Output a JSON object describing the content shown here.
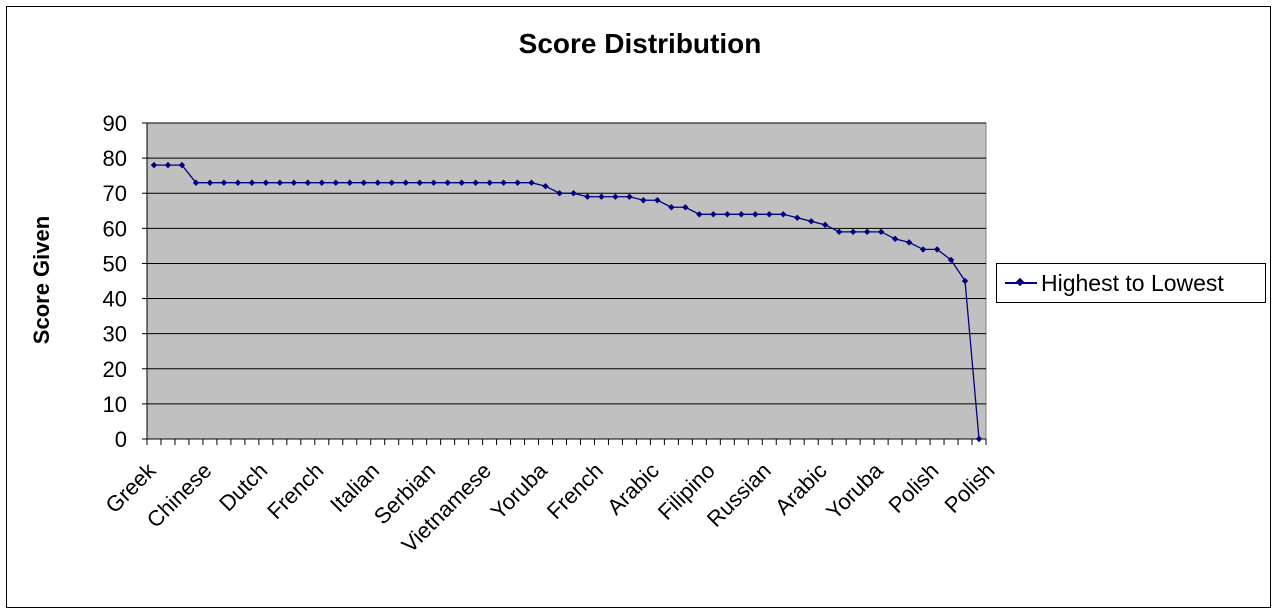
{
  "chart_data": {
    "type": "line",
    "title": "Score Distribution",
    "xlabel": "",
    "ylabel": "Score Given",
    "ylim": [
      0,
      90
    ],
    "yticks": [
      0,
      10,
      20,
      30,
      40,
      50,
      60,
      70,
      80,
      90
    ],
    "grid": true,
    "legend_position": "right",
    "plot_background": "#c0c0c0",
    "series_color": "#000080",
    "tick_labels": [
      "Greek",
      "Chinese",
      "Dutch",
      "French",
      "Italian",
      "Serbian",
      "Vietnamese",
      "Yoruba",
      "French",
      "Arabic",
      "Filipino",
      "Russian",
      "Arabic",
      "Yoruba",
      "Polish",
      "Polish"
    ],
    "tick_label_every": 4,
    "series": [
      {
        "name": "Highest to Lowest",
        "values": [
          78,
          78,
          78,
          73,
          73,
          73,
          73,
          73,
          73,
          73,
          73,
          73,
          73,
          73,
          73,
          73,
          73,
          73,
          73,
          73,
          73,
          73,
          73,
          73,
          73,
          73,
          73,
          73,
          72,
          70,
          70,
          69,
          69,
          69,
          69,
          68,
          68,
          66,
          66,
          64,
          64,
          64,
          64,
          64,
          64,
          64,
          63,
          62,
          61,
          59,
          59,
          59,
          59,
          57,
          56,
          54,
          54,
          51,
          45,
          0
        ]
      }
    ]
  }
}
